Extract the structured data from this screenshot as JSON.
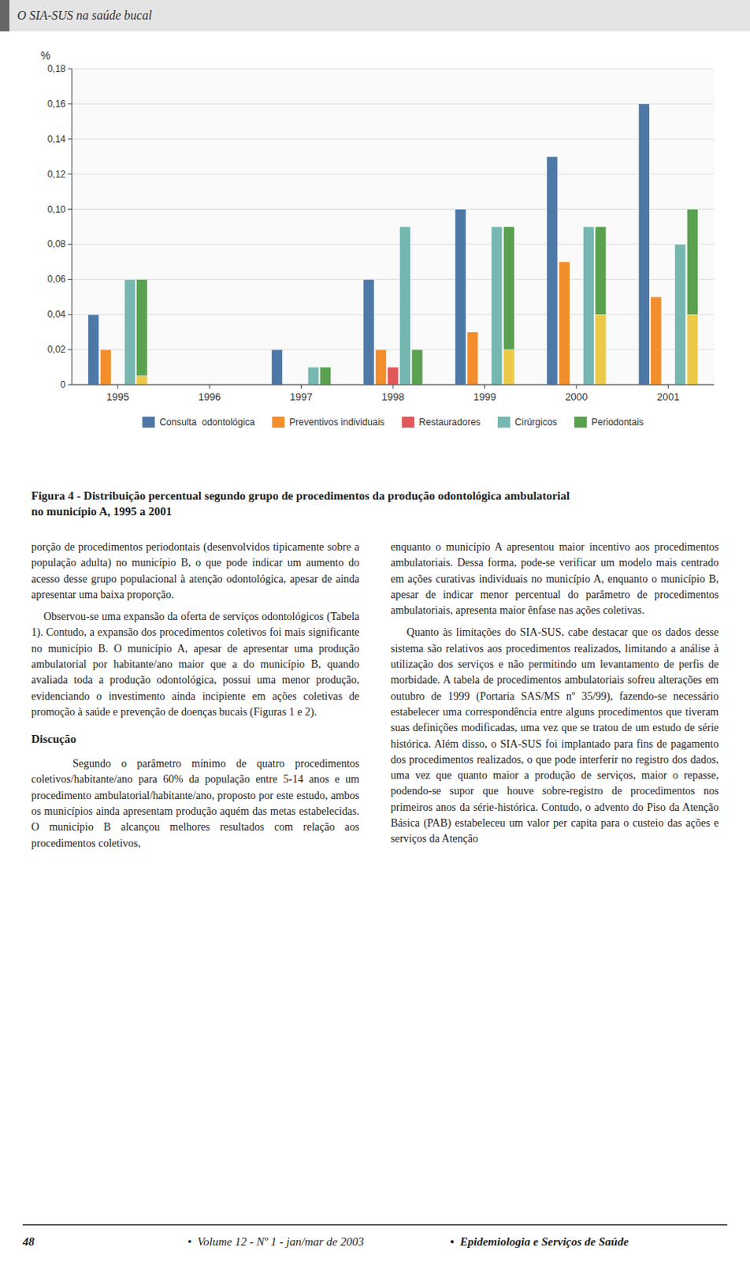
{
  "chart_data": {
    "type": "bar",
    "title": "Figura 4 - Distribuição percentual segundo grupo de procedimentos da produção odontológica ambulatorial\nno município A, 1995 a 2001",
    "y_label": "%",
    "categories": [
      "1995",
      "1996",
      "1997",
      "1998",
      "1999",
      "2000",
      "2001"
    ],
    "series": [
      {
        "name": "Consulta  odontológica",
        "color": "#4e79a7",
        "values": [
          0.04,
          0.0,
          0.02,
          0.06,
          0.1,
          0.13,
          0.16
        ]
      },
      {
        "name": "Preventivos individuais",
        "color": "#f28e2b",
        "values": [
          0.02,
          0.0,
          0.0,
          0.02,
          0.03,
          0.07,
          0.05
        ]
      },
      {
        "name": "Restauradores",
        "color": "#e15759",
        "values": [
          0.0,
          0.0,
          0.0,
          0.01,
          0.0,
          0.0,
          0.0
        ]
      },
      {
        "name": "Cirúrgicos",
        "color": "#76b7b2",
        "values": [
          0.06,
          0.0,
          0.01,
          0.09,
          0.09,
          0.09,
          0.08
        ]
      },
      {
        "name": "Periodontais",
        "color": "#59a14f",
        "values": [
          0.06,
          0.0,
          0.01,
          0.02,
          0.09,
          0.09,
          0.1
        ]
      },
      {
        "type": "overlay",
        "color": "#edc948",
        "values": [
          0.005,
          0.0,
          0.0,
          0.0,
          0.02,
          0.04,
          0.04
        ]
      }
    ],
    "ylim": [
      0,
      0.18
    ],
    "yticks": [
      0,
      {
        "value": 0.02,
        "label": "0,02"
      },
      {
        "value": 0.04,
        "label": "0,04"
      },
      {
        "value": 0.06,
        "label": "0,06"
      },
      {
        "value": 0.08,
        "label": "0,08"
      },
      {
        "value": 0.1,
        "label": "0,10"
      },
      {
        "value": 0.12,
        "label": "0,12"
      },
      {
        "value": 0.14,
        "label": "0,14"
      },
      {
        "value": 0.16,
        "label": "0,16"
      },
      {
        "value": 0.18,
        "label": "0,18"
      }
    ],
    "grid": true,
    "legend": "bottom"
  },
  "header": "O SIA-SUS na saúde bucal",
  "body_left": [
    "porção de procedimentos periodontais (desenvolvidos tipicamente sobre a população adulta) no município B, o que pode indicar um aumento do acesso desse grupo populacional à atenção odontológica, apesar de ainda apresentar uma baixa proporção.",
    "    Observou-se uma expansão da oferta de serviços odontológicos (Tabela 1). Contudo, a expansão dos procedimentos coletivos foi mais significante no município B. O município A, apesar de apresentar uma produção ambulatorial por habitante/ano maior que a do município B, quando avaliada toda a produção odontológica, possui uma menor produção, evidenciando o investimento ainda incipiente em ações coletivas de promoção à saúde e prevenção de doenças bucais (Figuras 1 e 2).",
    "Discução",
    "    Segundo o parâmetro mínimo de quatro procedimentos coletivos/habitante/ano para 60% da população entre 5-14 anos e um procedimento ambulatorial/habitante/ano, proposto por este estudo, ambos os municípios ainda apresentam produção aquém das metas estabelecidas. O município B alcançou melhores resultados com relação aos procedimentos coletivos,"
  ],
  "body_right": [
    "enquanto o município A apresentou maior incentivo aos procedimentos ambulatoriais. Dessa forma, pode-se verificar um modelo mais centrado em ações curativas individuais no município A, enquanto o município B, apesar de indicar menor percentual do parâmetro de procedimentos ambulatoriais, apresenta maior ênfase nas ações coletivas.",
    "    Quanto às limitações do SIA-SUS, cabe destacar que os dados desse sistema são relativos aos procedimentos realizados, limitando a análise à utilização dos serviços e não permitindo um levantamento de perfis de morbidade. A tabela de procedimentos ambulatoriais sofreu alterações em outubro de 1999 (Portaria SAS/MS nº 35/99), fazendo-se necessário estabelecer uma correspondência entre alguns procedimentos que tiveram suas definições modificadas, uma vez que se tratou de um estudo de série histórica. Além disso, o SIA-SUS foi implantado para fins de pagamento dos procedimentos realizados, o que pode interferir no registro dos dados, uma vez que quanto maior a produção de serviços, maior o repasse, podendo-se supor que houve sobre-registro de procedimentos nos primeiros anos da série-histórica. Contudo, o advento do Piso da Atenção Básica (PAB) estabeleceu um valor per capita para o custeio das ações e serviços da Atenção"
  ],
  "footer": [
    "48",
    "•  Volume 12 - Nº 1 - jan/mar de 2003",
    "•  Epidemiologia e Serviços de Saúde"
  ]
}
